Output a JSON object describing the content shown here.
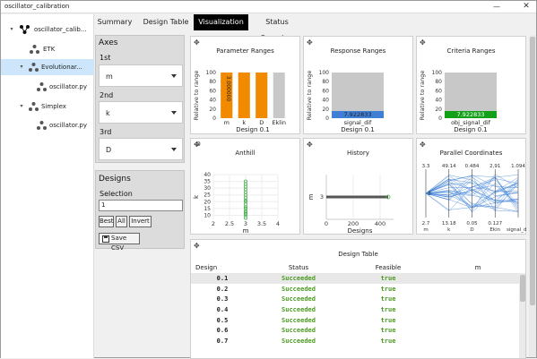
{
  "window": {
    "title": "oscillator_calibration",
    "minimize_label": "—",
    "close_label": "✕"
  },
  "tree": {
    "items": [
      {
        "label": "oscillator_calib...",
        "arrow": "▾",
        "icon": "project-icon",
        "selected": false
      },
      {
        "label": "ETK",
        "arrow": "",
        "icon": "node-icon",
        "selected": false
      },
      {
        "label": "Evolutionar...",
        "arrow": "▾",
        "icon": "node-icon",
        "selected": true
      },
      {
        "label": "oscillator.py",
        "arrow": "",
        "icon": "node-icon",
        "selected": false
      },
      {
        "label": "Simplex",
        "arrow": "▾",
        "icon": "node-icon",
        "selected": false
      },
      {
        "label": "oscillator.py",
        "arrow": "",
        "icon": "node-icon",
        "selected": false
      }
    ]
  },
  "tabs": [
    {
      "label": "Summary",
      "active": false
    },
    {
      "label": "Design Table",
      "active": false
    },
    {
      "label": "Visualization",
      "active": true
    },
    {
      "label": "Status Overview",
      "active": false
    }
  ],
  "axes_panel": {
    "title": "Axes",
    "first_label": "1st",
    "first_value": "m",
    "second_label": "2nd",
    "second_value": "k",
    "third_label": "3rd",
    "third_value": "D"
  },
  "designs_panel": {
    "title": "Designs",
    "selection_label": "Selection",
    "selection_value": "1",
    "best_label": "Best",
    "all_label": "All",
    "invert_label": "Invert",
    "save_csv_label": "Save CSV"
  },
  "move_glyph": "✥",
  "charts": {
    "parameter_ranges": {
      "title": "Parameter Ranges",
      "chart_data": {
        "type": "bar",
        "categories": [
          "m",
          "k",
          "D",
          "Eklin"
        ],
        "values": [
          100,
          100,
          100,
          100
        ],
        "selected": [
          100,
          100,
          100,
          null
        ],
        "ylabel": "Relative to range",
        "xlabel": "Design 0.1",
        "ylim": [
          0,
          100
        ],
        "yticks": [
          "0",
          "20",
          "40",
          "60",
          "80",
          "100"
        ],
        "bar_labels": [
          "3.000000",
          "",
          "",
          ""
        ],
        "colors": {
          "range": "#c8c8c8",
          "selected": "#f28a00"
        }
      }
    },
    "response_ranges": {
      "title": "Response Ranges",
      "chart_data": {
        "type": "bar",
        "categories": [
          "signal_dif"
        ],
        "values": [
          100
        ],
        "marker": 7.922833,
        "marker_label": "7.922833",
        "ylabel": "Relative to range",
        "xlabel": "Design 0.1",
        "ylim": [
          0,
          100
        ],
        "yticks": [
          "0",
          "20",
          "40",
          "60",
          "80",
          "100"
        ],
        "colors": {
          "range": "#c8c8c8",
          "marker": "#3f7fd6"
        }
      }
    },
    "criteria_ranges": {
      "title": "Criteria Ranges",
      "chart_data": {
        "type": "bar",
        "categories": [
          "obj_signal_dif"
        ],
        "values": [
          100
        ],
        "marker": 7.922833,
        "marker_label": "7.922833",
        "ylabel": "Relative to range",
        "xlabel": "Design 0.1",
        "ylim": [
          0,
          100
        ],
        "yticks": [
          "0",
          "20",
          "40",
          "60",
          "80",
          "100"
        ],
        "colors": {
          "range": "#c8c8c8",
          "marker": "#12a018"
        }
      }
    },
    "anthill": {
      "title": "Anthill",
      "chart_data": {
        "type": "scatter",
        "xlabel": "m",
        "ylabel": "k",
        "xticks": [
          "2",
          "2.5",
          "3",
          "3.5",
          "4"
        ],
        "yticks": [
          "10",
          "15",
          "20",
          "25",
          "30",
          "35",
          "40"
        ],
        "xlim": [
          2,
          4
        ],
        "ylim": [
          7,
          40
        ],
        "x": [
          3,
          3,
          3,
          3,
          3,
          3,
          3,
          3,
          3,
          3,
          3,
          3,
          3,
          3,
          3,
          3,
          3
        ],
        "y": [
          8,
          10,
          11,
          12,
          13,
          15,
          16,
          18,
          20,
          21,
          23,
          25,
          27,
          29,
          31,
          33,
          35
        ],
        "color": "#4caf50"
      }
    },
    "history": {
      "title": "History",
      "chart_data": {
        "type": "line",
        "xlabel": "Designs",
        "ylabel": "m",
        "xticks": [
          "0",
          "200",
          "400"
        ],
        "yticks": [
          "3"
        ],
        "xlim": [
          0,
          500
        ],
        "x": [
          0,
          460
        ],
        "y": [
          3,
          3
        ],
        "color": "#555555",
        "end_color": "#4caf50"
      }
    },
    "parallel": {
      "title": "Parallel Coordinates",
      "chart_data": {
        "type": "line",
        "axes": [
          "m",
          "k",
          "D",
          "Ekin",
          "signal_dif"
        ],
        "top_labels": [
          "3.3",
          "49.14",
          "0.484",
          "2,91",
          "1.094"
        ],
        "bottom_labels": [
          "2.7",
          "13.18",
          "0.05",
          "0.127",
          ""
        ],
        "mid_labels": [
          "3",
          "",
          "",
          "",
          ""
        ],
        "color": "#3a7fd6"
      }
    }
  },
  "design_table": {
    "title": "Design Table",
    "headers": [
      "Design",
      "Status",
      "Feasible",
      "m"
    ],
    "rows": [
      {
        "design": "0.1",
        "status": "Succeeded",
        "feasible": "true"
      },
      {
        "design": "0.2",
        "status": "Succeeded",
        "feasible": "true"
      },
      {
        "design": "0.3",
        "status": "Succeeded",
        "feasible": "true"
      },
      {
        "design": "0.4",
        "status": "Succeeded",
        "feasible": "true"
      },
      {
        "design": "0.5",
        "status": "Succeeded",
        "feasible": "true"
      },
      {
        "design": "0.6",
        "status": "Succeeded",
        "feasible": "true"
      },
      {
        "design": "0.7",
        "status": "Succeeded",
        "feasible": "true"
      }
    ]
  }
}
